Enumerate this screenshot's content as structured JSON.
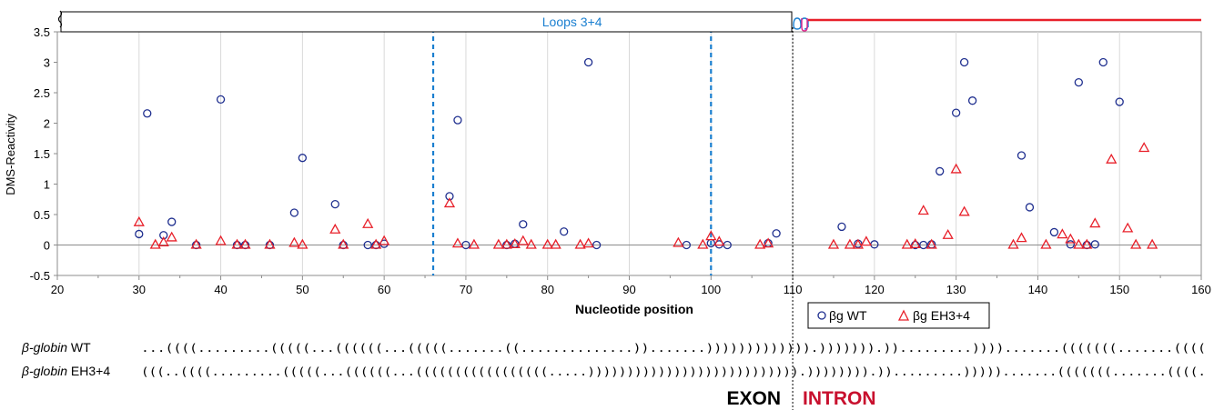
{
  "chart_data": {
    "type": "scatter",
    "xlabel": "Nucleotide position",
    "ylabel": "DMS-Reactivity",
    "xlim": [
      20,
      160
    ],
    "ylim": [
      -0.5,
      3.5
    ],
    "x_ticks": [
      "20",
      "30",
      "40",
      "50",
      "60",
      "70",
      "80",
      "90",
      "100",
      "110",
      "120",
      "130",
      "140",
      "150",
      "160"
    ],
    "y_ticks": [
      "-0.5",
      "0",
      "0.5",
      "1",
      "1.5",
      "2",
      "2.5",
      "3",
      "3.5"
    ],
    "grid": "vertical",
    "legend_position": "bottom-right",
    "series": [
      {
        "name": "βg WT",
        "marker": "circle",
        "color": "#1f2f8f",
        "points": [
          [
            30,
            0.18
          ],
          [
            31,
            2.16
          ],
          [
            33,
            0.16
          ],
          [
            34,
            0.38
          ],
          [
            37,
            0.0
          ],
          [
            40,
            2.39
          ],
          [
            42,
            0.0
          ],
          [
            43,
            0.0
          ],
          [
            46,
            0.0
          ],
          [
            49,
            0.53
          ],
          [
            50,
            1.43
          ],
          [
            54,
            0.67
          ],
          [
            55,
            0.0
          ],
          [
            58,
            0.0
          ],
          [
            59,
            0.0
          ],
          [
            60,
            0.02
          ],
          [
            68,
            0.8
          ],
          [
            69,
            2.05
          ],
          [
            70,
            0.0
          ],
          [
            75,
            0.0
          ],
          [
            76,
            0.02
          ],
          [
            77,
            0.34
          ],
          [
            82,
            0.22
          ],
          [
            85,
            3.0
          ],
          [
            86,
            0.0
          ],
          [
            97,
            0.0
          ],
          [
            100,
            0.03
          ],
          [
            101,
            0.01
          ],
          [
            102,
            0.0
          ],
          [
            107,
            0.03
          ],
          [
            108,
            0.19
          ],
          [
            116,
            0.3
          ],
          [
            118,
            0.02
          ],
          [
            120,
            0.01
          ],
          [
            125,
            0.0
          ],
          [
            126,
            0.0
          ],
          [
            127,
            0.01
          ],
          [
            128,
            1.21
          ],
          [
            130,
            2.17
          ],
          [
            131,
            3.0
          ],
          [
            132,
            2.37
          ],
          [
            138,
            1.47
          ],
          [
            139,
            0.62
          ],
          [
            142,
            0.21
          ],
          [
            144,
            0.01
          ],
          [
            145,
            2.67
          ],
          [
            146,
            0.0
          ],
          [
            147,
            0.01
          ],
          [
            148,
            3.0
          ],
          [
            150,
            2.35
          ]
        ]
      },
      {
        "name": "βg EH3+4",
        "marker": "triangle",
        "color": "#e8202a",
        "points": [
          [
            30,
            0.37
          ],
          [
            32,
            0.0
          ],
          [
            33,
            0.04
          ],
          [
            34,
            0.12
          ],
          [
            37,
            0.0
          ],
          [
            40,
            0.06
          ],
          [
            42,
            0.0
          ],
          [
            43,
            0.0
          ],
          [
            46,
            0.0
          ],
          [
            49,
            0.03
          ],
          [
            50,
            0.0
          ],
          [
            54,
            0.25
          ],
          [
            55,
            0.0
          ],
          [
            58,
            0.34
          ],
          [
            59,
            0.0
          ],
          [
            60,
            0.06
          ],
          [
            68,
            0.68
          ],
          [
            69,
            0.02
          ],
          [
            71,
            0.0
          ],
          [
            74,
            0.0
          ],
          [
            75,
            0.0
          ],
          [
            76,
            0.01
          ],
          [
            77,
            0.06
          ],
          [
            78,
            0.0
          ],
          [
            80,
            0.0
          ],
          [
            81,
            0.0
          ],
          [
            84,
            0.0
          ],
          [
            85,
            0.02
          ],
          [
            96,
            0.03
          ],
          [
            99,
            0.0
          ],
          [
            100,
            0.14
          ],
          [
            101,
            0.05
          ],
          [
            106,
            0.0
          ],
          [
            107,
            0.02
          ],
          [
            115,
            0.0
          ],
          [
            117,
            0.0
          ],
          [
            118,
            0.0
          ],
          [
            119,
            0.05
          ],
          [
            124,
            0.0
          ],
          [
            125,
            0.01
          ],
          [
            126,
            0.56
          ],
          [
            127,
            0.0
          ],
          [
            129,
            0.16
          ],
          [
            130,
            1.24
          ],
          [
            131,
            0.54
          ],
          [
            137,
            0.0
          ],
          [
            138,
            0.11
          ],
          [
            141,
            0.0
          ],
          [
            143,
            0.17
          ],
          [
            144,
            0.09
          ],
          [
            145,
            0.0
          ],
          [
            146,
            0.0
          ],
          [
            147,
            0.35
          ],
          [
            149,
            1.4
          ],
          [
            151,
            0.27
          ],
          [
            152,
            0.0
          ],
          [
            153,
            1.59
          ],
          [
            154,
            0.0
          ]
        ]
      }
    ],
    "loop_region": {
      "label": "Loops 3+4",
      "start": 66,
      "end": 100
    },
    "exon_intron_boundary": 110
  },
  "labels": {
    "loops": "Loops 3+4",
    "exon": "EXON",
    "intron": "INTRON"
  },
  "legend": {
    "wt": "βg WT",
    "eh": "βg EH3+4"
  },
  "structures": [
    {
      "name_italic": "β-globin",
      "name_rest": " WT",
      "dotbracket": "...((((.........(((((...((((((...(((((.......((..............)).......))))))))))))).))))))).)).........)))).......(((((((.......(((("
    },
    {
      "name_italic": "β-globin",
      "name_rest": " EH3+4",
      "dotbracket": "(((..((((.........(((((...((((((...(((((((((((((((((.....))))))))))))))))))))))))))).)))))))).)).........))))).......(((((((.......((((."
    }
  ],
  "colors": {
    "wt_blue": "#1f2f8f",
    "eh_red": "#e8202a",
    "loop_line": "#1a7fd0",
    "intron_red": "#c8102e",
    "exon_black": "#000000"
  }
}
